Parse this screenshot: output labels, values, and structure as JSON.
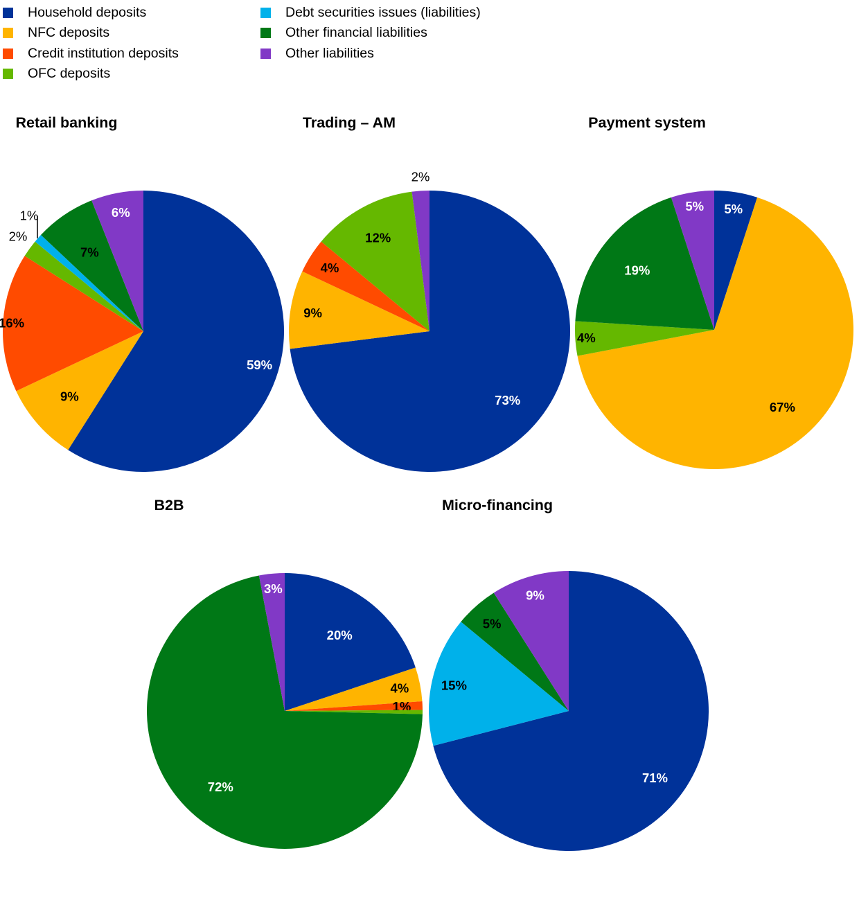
{
  "colors": {
    "household": "#003299",
    "nfc": "#FFB400",
    "credit": "#FF4B00",
    "ofc": "#65B800",
    "debt": "#00B1EA",
    "other_fin": "#007816",
    "other_liab": "#8139C6"
  },
  "legend": [
    {
      "key": "household",
      "label": "Household deposits"
    },
    {
      "key": "nfc",
      "label": "NFC deposits"
    },
    {
      "key": "credit",
      "label": "Credit institution deposits"
    },
    {
      "key": "ofc",
      "label": "OFC deposits"
    },
    {
      "key": "debt",
      "label": "Debt securities issues (liabilities)"
    },
    {
      "key": "other_fin",
      "label": "Other financial liabilities"
    },
    {
      "key": "other_liab",
      "label": "Other liabilities"
    }
  ],
  "chart_data": [
    {
      "type": "pie",
      "title": "Retail banking",
      "slices": [
        {
          "key": "household",
          "value": 59,
          "label": "59%"
        },
        {
          "key": "nfc",
          "value": 9,
          "label": "9%"
        },
        {
          "key": "credit",
          "value": 16,
          "label": "16%"
        },
        {
          "key": "ofc",
          "value": 2,
          "label": "2%"
        },
        {
          "key": "debt",
          "value": 1,
          "label": "1%"
        },
        {
          "key": "other_fin",
          "value": 7,
          "label": "7%"
        },
        {
          "key": "other_liab",
          "value": 6,
          "label": "6%"
        }
      ]
    },
    {
      "type": "pie",
      "title": "Trading – AM",
      "slices": [
        {
          "key": "household",
          "value": 73,
          "label": "73%"
        },
        {
          "key": "nfc",
          "value": 9,
          "label": "9%"
        },
        {
          "key": "credit",
          "value": 4,
          "label": "4%"
        },
        {
          "key": "ofc",
          "value": 12,
          "label": "12%"
        },
        {
          "key": "other_liab",
          "value": 2,
          "label": "2%"
        }
      ]
    },
    {
      "type": "pie",
      "title": "Payment system",
      "slices": [
        {
          "key": "household",
          "value": 5,
          "label": "5%"
        },
        {
          "key": "nfc",
          "value": 67,
          "label": "67%"
        },
        {
          "key": "ofc",
          "value": 4,
          "label": "4%"
        },
        {
          "key": "other_fin",
          "value": 19,
          "label": "19%"
        },
        {
          "key": "other_liab",
          "value": 5,
          "label": "5%"
        }
      ]
    },
    {
      "type": "pie",
      "title": "B2B",
      "slices": [
        {
          "key": "household",
          "value": 20,
          "label": "20%"
        },
        {
          "key": "nfc",
          "value": 4,
          "label": "4%"
        },
        {
          "key": "credit",
          "value": 1,
          "label": "1%"
        },
        {
          "key": "ofc",
          "value": 0.5,
          "label": ""
        },
        {
          "key": "other_fin",
          "value": 72,
          "label": "72%"
        },
        {
          "key": "other_liab",
          "value": 3,
          "label": "3%"
        }
      ]
    },
    {
      "type": "pie",
      "title": "Micro-financing",
      "slices": [
        {
          "key": "household",
          "value": 71,
          "label": "71%"
        },
        {
          "key": "debt",
          "value": 15,
          "label": "15%"
        },
        {
          "key": "other_fin",
          "value": 5,
          "label": "5%"
        },
        {
          "key": "other_liab",
          "value": 9,
          "label": "9%"
        }
      ]
    }
  ]
}
